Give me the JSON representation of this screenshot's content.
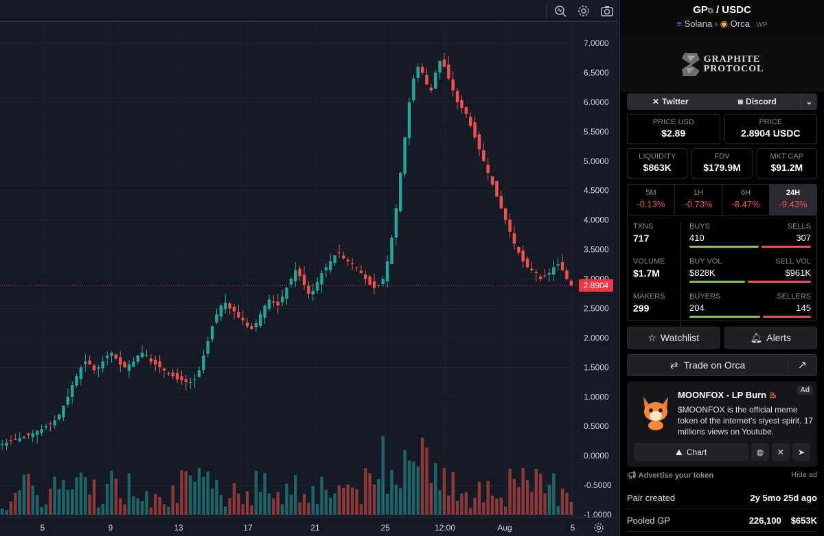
{
  "toolbar": {
    "icons": [
      "indicator-icon",
      "settings-icon",
      "camera-icon"
    ]
  },
  "chart_data": {
    "type": "candlestick",
    "x_ticks": [
      "5",
      "9",
      "13",
      "17",
      "21",
      "25",
      "12:00",
      "Aug",
      "5"
    ],
    "y_ticks": [
      "7.0000",
      "6.5000",
      "6.0000",
      "5.5000",
      "5.0000",
      "4.5000",
      "4.0000",
      "3.5000",
      "3.0000",
      "2.5000",
      "2.0000",
      "1.5000",
      "1.0000",
      "0.5000",
      "0.0000",
      "-0.5000",
      "-1.0000"
    ],
    "ylim": [
      -1.0,
      7.0
    ],
    "last_price": "2.8904",
    "price_path": [
      0.2,
      0.22,
      0.25,
      0.28,
      0.3,
      0.32,
      0.35,
      0.38,
      0.42,
      0.45,
      0.5,
      0.55,
      0.6,
      0.7,
      0.85,
      1.0,
      1.2,
      1.35,
      1.5,
      1.6,
      1.55,
      1.45,
      1.5,
      1.6,
      1.7,
      1.75,
      1.65,
      1.55,
      1.5,
      1.55,
      1.6,
      1.7,
      1.75,
      1.7,
      1.6,
      1.55,
      1.5,
      1.45,
      1.4,
      1.35,
      1.3,
      1.28,
      1.25,
      1.25,
      1.3,
      1.45,
      1.7,
      1.95,
      2.2,
      2.4,
      2.55,
      2.6,
      2.5,
      2.45,
      2.35,
      2.3,
      2.2,
      2.15,
      2.25,
      2.4,
      2.55,
      2.65,
      2.6,
      2.55,
      2.7,
      2.85,
      3.0,
      3.15,
      3.05,
      2.9,
      2.75,
      2.8,
      2.95,
      3.1,
      3.2,
      3.3,
      3.4,
      3.45,
      3.35,
      3.3,
      3.25,
      3.2,
      3.1,
      3.0,
      2.9,
      2.85,
      2.9,
      3.0,
      3.3,
      3.7,
      4.2,
      4.8,
      5.4,
      6.0,
      6.4,
      6.6,
      6.5,
      6.3,
      6.2,
      6.5,
      6.7,
      6.6,
      6.4,
      6.2,
      6.0,
      5.9,
      5.8,
      5.6,
      5.4,
      5.2,
      5.0,
      4.8,
      4.6,
      4.4,
      4.2,
      4.0,
      3.8,
      3.6,
      3.45,
      3.3,
      3.2,
      3.15,
      3.1,
      3.0,
      3.05,
      3.1,
      3.2,
      3.25,
      3.15,
      3.0,
      2.89
    ],
    "volume_peak_label": "volume bars"
  },
  "pair": {
    "base": "GP",
    "quote": "/ USDC",
    "chain": "Solana",
    "dex": "Orca",
    "tag": "WP"
  },
  "banner": {
    "line1": "GRAPHITE",
    "line2": "PROTOCOL"
  },
  "social": {
    "twitter": "Twitter",
    "discord": "Discord"
  },
  "prices": {
    "price_usd_label": "PRICE USD",
    "price_usd": "$2.89",
    "price_label": "PRICE",
    "price": "2.8904 USDC"
  },
  "metrics": {
    "liquidity_label": "LIQUIDITY",
    "liquidity": "$863K",
    "fdv_label": "FDV",
    "fdv": "$179.9M",
    "mktcap_label": "MKT CAP",
    "mktcap": "$91.2M"
  },
  "periods": [
    {
      "label": "5M",
      "value": "-0.13%"
    },
    {
      "label": "1H",
      "value": "-0.73%"
    },
    {
      "label": "6H",
      "value": "-8.47%"
    },
    {
      "label": "24H",
      "value": "-9.43%"
    }
  ],
  "txns": {
    "rows": [
      {
        "left_label": "TXNS",
        "left_value": "717",
        "l_label": "BUYS",
        "r_label": "SELLS",
        "l_value": "410",
        "r_value": "307",
        "buy_fraction": 0.57
      },
      {
        "left_label": "VOLUME",
        "left_value": "$1.7M",
        "l_label": "BUY VOL",
        "r_label": "SELL VOL",
        "l_value": "$828K",
        "r_value": "$961K",
        "buy_fraction": 0.46
      },
      {
        "left_label": "MAKERS",
        "left_value": "299",
        "l_label": "BUYERS",
        "r_label": "SELLERS",
        "l_value": "204",
        "r_value": "145",
        "buy_fraction": 0.58
      }
    ]
  },
  "actions": {
    "watchlist": "Watchlist",
    "alerts": "Alerts",
    "trade": "Trade on Orca"
  },
  "ad": {
    "tag": "Ad",
    "title": "MOONFOX - LP Burn",
    "desc": "$MOONFOX is the official meme token of the internet's slyest spirit. 17 millions views on Youtube.",
    "chart": "Chart",
    "advertise": "Advertise your token",
    "hide": "Hide ad"
  },
  "info": {
    "pair_created_label": "Pair created",
    "pair_created": "2y 5mo 25d ago",
    "pooled_label": "Pooled GP",
    "pooled_amount": "226,100",
    "pooled_usd": "$653K"
  },
  "colors": {
    "up": "#26a69a",
    "down": "#ef5350",
    "badge": "#f23645"
  }
}
